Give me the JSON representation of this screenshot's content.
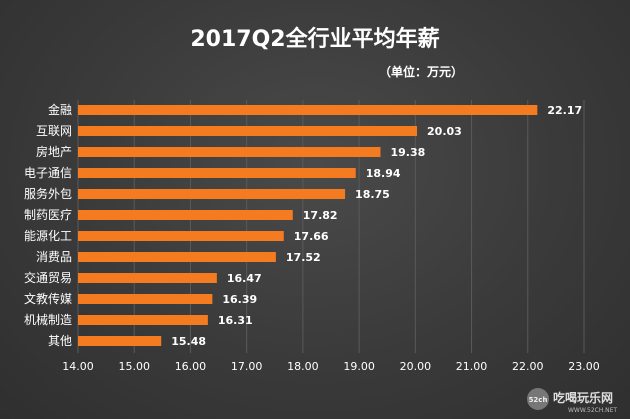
{
  "chart_data": {
    "type": "bar",
    "orientation": "horizontal",
    "title": "2017Q2全行业平均年薪",
    "unit_label": "（单位：万元）",
    "categories": [
      "金融",
      "互联网",
      "房地产",
      "电子通信",
      "服务外包",
      "制药医疗",
      "能源化工",
      "消费品",
      "交通贸易",
      "文教传媒",
      "机械制造",
      "其他"
    ],
    "values": [
      22.17,
      20.03,
      19.38,
      18.94,
      18.75,
      17.82,
      17.66,
      17.52,
      16.47,
      16.39,
      16.31,
      15.48
    ],
    "value_labels": [
      "22.17",
      "20.03",
      "19.38",
      "18.94",
      "18.75",
      "17.82",
      "17.66",
      "17.52",
      "16.47",
      "16.39",
      "16.31",
      "15.48"
    ],
    "xlim": [
      14,
      23
    ],
    "x_ticks": [
      "14.00",
      "15.00",
      "16.00",
      "17.00",
      "18.00",
      "19.00",
      "20.00",
      "21.00",
      "22.00",
      "23.00"
    ],
    "grid": true,
    "bar_color": "#f47b20"
  },
  "watermark": {
    "badge": "52ch",
    "text": "吃喝玩乐网",
    "url": "WWW.52CH.NET"
  }
}
